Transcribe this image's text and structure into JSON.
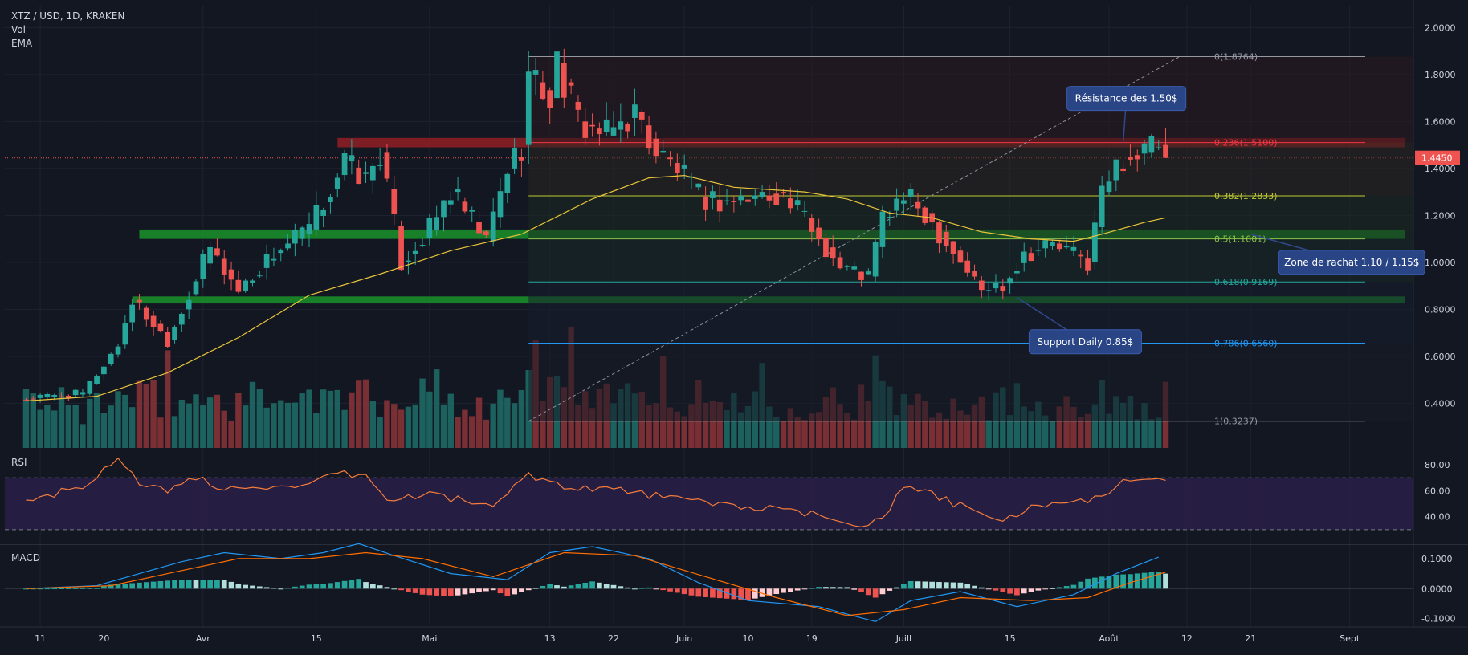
{
  "header": {
    "symbol": "XTZ / USD, 1D, KRAKEN",
    "vol_label": "Vol",
    "ema_label": "EMA",
    "rsi_label": "RSI",
    "macd_label": "MACD"
  },
  "colors": {
    "background": "#131722",
    "up": "#26a69a",
    "down": "#ef5350",
    "ema": "#e9c43a",
    "rsi_line": "#f57c3a",
    "rsi_band": "#2a1f49",
    "macd_line": "#2196f3",
    "signal_line": "#ff6d00",
    "resistance_zone": "#8b1e23",
    "support_zone": "#1a8c2a"
  },
  "chart_data": [
    {
      "type": "candlestick",
      "title": "XTZ / USD, 1D, KRAKEN",
      "last_price": "1.4450",
      "price_axis": {
        "range": [
          0.21,
          2.09
        ],
        "ticks": [
          "2.0000",
          "1.8000",
          "1.6000",
          "1.4000",
          "1.2000",
          "1.0000",
          "0.8000",
          "0.6000",
          "0.4000"
        ],
        "tick_values": [
          2.0,
          1.8,
          1.6,
          1.4,
          1.2,
          1.0,
          0.8,
          0.6,
          0.4
        ]
      },
      "time_axis": {
        "labels": [
          "11",
          "20",
          "Avr",
          "15",
          "Mai",
          "13",
          "22",
          "Juin",
          "10",
          "19",
          "Juill",
          "15",
          "Août",
          "12",
          "21",
          "Sept"
        ],
        "label_day_index": [
          2,
          11,
          25,
          41,
          57,
          74,
          83,
          93,
          102,
          111,
          124,
          139,
          153,
          164,
          173,
          187
        ],
        "day_range": [
          -3,
          196
        ]
      },
      "series_close": [
        {
          "day": 0,
          "close": 0.42
        },
        {
          "day": 8,
          "close": 0.44
        },
        {
          "day": 13,
          "close": 0.65
        },
        {
          "day": 15,
          "close": 0.84
        },
        {
          "day": 20,
          "close": 0.67
        },
        {
          "day": 26,
          "close": 1.06
        },
        {
          "day": 30,
          "close": 0.88
        },
        {
          "day": 35,
          "close": 1.04
        },
        {
          "day": 40,
          "close": 1.14
        },
        {
          "day": 45,
          "close": 1.43
        },
        {
          "day": 48,
          "close": 1.35
        },
        {
          "day": 50,
          "close": 1.47
        },
        {
          "day": 53,
          "close": 1.0
        },
        {
          "day": 57,
          "close": 1.14
        },
        {
          "day": 60,
          "close": 1.3
        },
        {
          "day": 65,
          "close": 1.09
        },
        {
          "day": 68,
          "close": 1.4
        },
        {
          "day": 70,
          "close": 1.5
        },
        {
          "day": 71,
          "close": 1.8
        },
        {
          "day": 74,
          "close": 1.7
        },
        {
          "day": 75,
          "close": 1.85
        },
        {
          "day": 78,
          "close": 1.6
        },
        {
          "day": 82,
          "close": 1.54
        },
        {
          "day": 86,
          "close": 1.64
        },
        {
          "day": 89,
          "close": 1.47
        },
        {
          "day": 92,
          "close": 1.4
        },
        {
          "day": 95,
          "close": 1.28
        },
        {
          "day": 98,
          "close": 1.26
        },
        {
          "day": 102,
          "close": 1.27
        },
        {
          "day": 106,
          "close": 1.3
        },
        {
          "day": 110,
          "close": 1.19
        },
        {
          "day": 115,
          "close": 0.98
        },
        {
          "day": 119,
          "close": 0.94
        },
        {
          "day": 121,
          "close": 1.19
        },
        {
          "day": 124,
          "close": 1.28
        },
        {
          "day": 127,
          "close": 1.21
        },
        {
          "day": 131,
          "close": 1.05
        },
        {
          "day": 135,
          "close": 0.88
        },
        {
          "day": 138,
          "close": 0.91
        },
        {
          "day": 141,
          "close": 1.04
        },
        {
          "day": 145,
          "close": 1.08
        },
        {
          "day": 150,
          "close": 1.0
        },
        {
          "day": 152,
          "close": 1.3
        },
        {
          "day": 155,
          "close": 1.45
        },
        {
          "day": 158,
          "close": 1.47
        },
        {
          "day": 160,
          "close": 1.5
        },
        {
          "day": 161,
          "close": 1.445
        }
      ],
      "ema": [
        {
          "day": 0,
          "value": 0.41
        },
        {
          "day": 10,
          "value": 0.43
        },
        {
          "day": 20,
          "value": 0.53
        },
        {
          "day": 30,
          "value": 0.68
        },
        {
          "day": 40,
          "value": 0.86
        },
        {
          "day": 50,
          "value": 0.95
        },
        {
          "day": 60,
          "value": 1.05
        },
        {
          "day": 70,
          "value": 1.12
        },
        {
          "day": 80,
          "value": 1.27
        },
        {
          "day": 88,
          "value": 1.36
        },
        {
          "day": 93,
          "value": 1.37
        },
        {
          "day": 100,
          "value": 1.32
        },
        {
          "day": 110,
          "value": 1.3
        },
        {
          "day": 116,
          "value": 1.27
        },
        {
          "day": 122,
          "value": 1.21
        },
        {
          "day": 128,
          "value": 1.19
        },
        {
          "day": 135,
          "value": 1.13
        },
        {
          "day": 142,
          "value": 1.1
        },
        {
          "day": 148,
          "value": 1.09
        },
        {
          "day": 152,
          "value": 1.12
        },
        {
          "day": 158,
          "value": 1.17
        },
        {
          "day": 161,
          "value": 1.19
        }
      ],
      "fibonacci": [
        {
          "label": "0(1.8764)",
          "value": 1.8764,
          "color": "#9598a1"
        },
        {
          "label": "0.236(1.5100)",
          "value": 1.51,
          "color": "#f23645"
        },
        {
          "label": "0.382(1.2833)",
          "value": 1.2833,
          "color": "#c0ca33"
        },
        {
          "label": "0.5(1.1001)",
          "value": 1.1001,
          "color": "#8bc34a"
        },
        {
          "label": "0.618(0.9169)",
          "value": 0.9169,
          "color": "#26a69a"
        },
        {
          "label": "0.786(0.6560)",
          "value": 0.656,
          "color": "#2196f3"
        },
        {
          "label": "1(0.3237)",
          "value": 0.3237,
          "color": "#9598a1"
        }
      ],
      "fib_start_day": 71,
      "trendline": {
        "from": {
          "day": 71,
          "value": 0.3237
        },
        "to": {
          "day": 163,
          "value": 1.8764
        }
      },
      "zones": [
        {
          "name": "resistance",
          "from_day": 44,
          "top": 1.53,
          "bottom": 1.49
        },
        {
          "name": "buy-zone",
          "from_day": 16,
          "top": 1.14,
          "bottom": 1.1
        },
        {
          "name": "support",
          "from_day": 15,
          "top": 0.855,
          "bottom": 0.825
        }
      ],
      "annotations": [
        {
          "text": "Résistance des 1.50$",
          "day": 155
        },
        {
          "text": "Zone de rachat 1.10 / 1.15$",
          "day": 173
        },
        {
          "text": "Support Daily 0.85$",
          "day": 140
        }
      ]
    },
    {
      "type": "line",
      "title": "RSI",
      "ylim": [
        20,
        90
      ],
      "ticks": [
        "80.00",
        "60.00",
        "40.00"
      ],
      "tick_values": [
        80,
        60,
        40
      ],
      "bands": [
        70,
        30
      ],
      "values": [
        {
          "day": 0,
          "value": 52
        },
        {
          "day": 4,
          "value": 58
        },
        {
          "day": 8,
          "value": 62
        },
        {
          "day": 12,
          "value": 82
        },
        {
          "day": 13,
          "value": 88
        },
        {
          "day": 16,
          "value": 64
        },
        {
          "day": 20,
          "value": 60
        },
        {
          "day": 25,
          "value": 72
        },
        {
          "day": 27,
          "value": 60
        },
        {
          "day": 32,
          "value": 65
        },
        {
          "day": 38,
          "value": 60
        },
        {
          "day": 44,
          "value": 73
        },
        {
          "day": 48,
          "value": 72
        },
        {
          "day": 51,
          "value": 52
        },
        {
          "day": 57,
          "value": 58
        },
        {
          "day": 62,
          "value": 52
        },
        {
          "day": 66,
          "value": 48
        },
        {
          "day": 71,
          "value": 73
        },
        {
          "day": 76,
          "value": 63
        },
        {
          "day": 82,
          "value": 62
        },
        {
          "day": 88,
          "value": 57
        },
        {
          "day": 94,
          "value": 52
        },
        {
          "day": 100,
          "value": 49
        },
        {
          "day": 108,
          "value": 44
        },
        {
          "day": 114,
          "value": 39
        },
        {
          "day": 119,
          "value": 33
        },
        {
          "day": 122,
          "value": 46
        },
        {
          "day": 124,
          "value": 63
        },
        {
          "day": 128,
          "value": 57
        },
        {
          "day": 133,
          "value": 46
        },
        {
          "day": 138,
          "value": 36
        },
        {
          "day": 143,
          "value": 50
        },
        {
          "day": 148,
          "value": 49
        },
        {
          "day": 152,
          "value": 57
        },
        {
          "day": 155,
          "value": 67
        },
        {
          "day": 158,
          "value": 71
        },
        {
          "day": 161,
          "value": 69
        }
      ]
    },
    {
      "type": "line",
      "title": "MACD",
      "ylim": [
        -0.125,
        0.14
      ],
      "ticks": [
        "0.1000",
        "0.0000",
        "-0.1000"
      ],
      "tick_values": [
        0.1,
        0.0,
        -0.1
      ],
      "series": [
        {
          "role": "macd",
          "values": [
            {
              "day": 0,
              "value": 0.0
            },
            {
              "day": 10,
              "value": 0.01
            },
            {
              "day": 16,
              "value": 0.05
            },
            {
              "day": 22,
              "value": 0.09
            },
            {
              "day": 28,
              "value": 0.12
            },
            {
              "day": 36,
              "value": 0.1
            },
            {
              "day": 42,
              "value": 0.12
            },
            {
              "day": 47,
              "value": 0.15
            },
            {
              "day": 52,
              "value": 0.11
            },
            {
              "day": 60,
              "value": 0.05
            },
            {
              "day": 68,
              "value": 0.03
            },
            {
              "day": 74,
              "value": 0.12
            },
            {
              "day": 80,
              "value": 0.14
            },
            {
              "day": 88,
              "value": 0.1
            },
            {
              "day": 95,
              "value": 0.02
            },
            {
              "day": 102,
              "value": -0.04
            },
            {
              "day": 112,
              "value": -0.06
            },
            {
              "day": 120,
              "value": -0.11
            },
            {
              "day": 125,
              "value": -0.04
            },
            {
              "day": 132,
              "value": -0.01
            },
            {
              "day": 140,
              "value": -0.06
            },
            {
              "day": 148,
              "value": -0.02
            },
            {
              "day": 154,
              "value": 0.05
            },
            {
              "day": 160,
              "value": 0.105
            }
          ]
        },
        {
          "role": "signal",
          "values": [
            {
              "day": 0,
              "value": 0.0
            },
            {
              "day": 12,
              "value": 0.01
            },
            {
              "day": 20,
              "value": 0.05
            },
            {
              "day": 30,
              "value": 0.1
            },
            {
              "day": 40,
              "value": 0.1
            },
            {
              "day": 48,
              "value": 0.12
            },
            {
              "day": 56,
              "value": 0.1
            },
            {
              "day": 66,
              "value": 0.04
            },
            {
              "day": 76,
              "value": 0.12
            },
            {
              "day": 86,
              "value": 0.11
            },
            {
              "day": 96,
              "value": 0.04
            },
            {
              "day": 106,
              "value": -0.03
            },
            {
              "day": 116,
              "value": -0.09
            },
            {
              "day": 124,
              "value": -0.07
            },
            {
              "day": 132,
              "value": -0.03
            },
            {
              "day": 142,
              "value": -0.04
            },
            {
              "day": 150,
              "value": -0.03
            },
            {
              "day": 156,
              "value": 0.02
            },
            {
              "day": 161,
              "value": 0.055
            }
          ]
        }
      ],
      "histogram_range": [
        0,
        161
      ]
    }
  ]
}
